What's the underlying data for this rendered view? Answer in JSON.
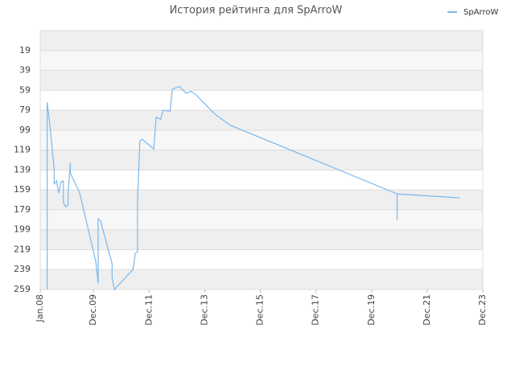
{
  "chart_data": {
    "type": "line",
    "title": "История рейтинга для SpArroW",
    "x": [
      "2008-04",
      "2008-04",
      "2008-05",
      "2008-06",
      "2008-07",
      "2008-07",
      "2008-08",
      "2008-09",
      "2008-10",
      "2008-11",
      "2008-11",
      "2008-12",
      "2009-01",
      "2009-01",
      "2009-02",
      "2009-02",
      "2009-06",
      "2010-01",
      "2010-02",
      "2010-02",
      "2010-03",
      "2010-08",
      "2010-08",
      "2010-09",
      "2011-05",
      "2011-06",
      "2011-07",
      "2011-07",
      "2011-08",
      "2011-09",
      "2012-02",
      "2012-03",
      "2012-05",
      "2012-06",
      "2012-09",
      "2012-10",
      "2013-01",
      "2013-04",
      "2013-06",
      "2013-08",
      "2014-04",
      "2014-05",
      "2014-11",
      "2020-11",
      "2020-11",
      "2020-11",
      "2023-02"
    ],
    "series": [
      {
        "name": "SpArroW",
        "color": "#7ab8ee",
        "values": [
          259,
          71,
          90,
          114,
          138,
          153,
          150,
          162,
          151,
          150,
          172,
          176,
          174,
          162,
          132,
          142,
          162,
          231,
          253,
          188,
          190,
          233,
          247,
          259,
          239,
          223,
          221,
          171,
          110,
          108,
          118,
          86,
          88,
          79,
          80,
          58,
          55,
          62,
          60,
          63,
          82,
          84,
          94,
          163,
          189,
          163,
          167
        ]
      }
    ],
    "xlim": [
      "2008-01",
      "2023-12"
    ],
    "xticks": [
      {
        "value": "2008-01",
        "label": "Jan.08"
      },
      {
        "value": "2009-12",
        "label": "Dec.09"
      },
      {
        "value": "2011-12",
        "label": "Dec.11"
      },
      {
        "value": "2013-12",
        "label": "Dec.13"
      },
      {
        "value": "2015-12",
        "label": "Dec.15"
      },
      {
        "value": "2017-12",
        "label": "Dec.17"
      },
      {
        "value": "2019-12",
        "label": "Dec.19"
      },
      {
        "value": "2021-12",
        "label": "Dec.21"
      },
      {
        "value": "2023-12",
        "label": "Dec.23"
      }
    ],
    "ylim": [
      259,
      -1
    ],
    "yticks": [
      19,
      39,
      59,
      79,
      99,
      119,
      139,
      159,
      179,
      199,
      219,
      239,
      259
    ],
    "grid": true,
    "legend": "top-right"
  }
}
